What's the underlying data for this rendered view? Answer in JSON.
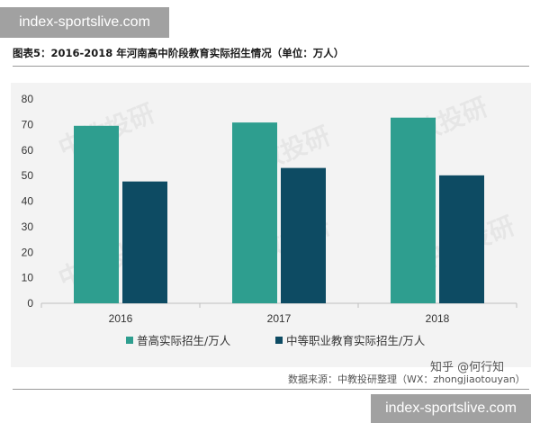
{
  "watermarks": {
    "top": "index-sportslive.com",
    "bottom": "index-sportslive.com"
  },
  "figure": {
    "title": "图表5：2016-2018 年河南高中阶段教育实际招生情况（单位：万人）",
    "source": "数据来源：中教投研整理（WX：zhongjiaotouyan）",
    "credit": "知乎 @何行知"
  },
  "colors": {
    "series1": "#2e9e8f",
    "series2": "#0d4b63",
    "background": "#f3f3f3",
    "grid": "#d0d0d0"
  },
  "chart_data": {
    "type": "bar",
    "categories": [
      "2016",
      "2017",
      "2018"
    ],
    "series": [
      {
        "name": "普高实际招生/万人",
        "values": [
          69.5,
          70.8,
          72.7
        ]
      },
      {
        "name": "中等职业教育实际招生/万人",
        "values": [
          47.7,
          53.0,
          50.1
        ]
      }
    ],
    "ylim": [
      0,
      80
    ],
    "yticks": [
      0,
      10,
      20,
      30,
      40,
      50,
      60,
      70,
      80
    ],
    "grid": false,
    "legend": "bottom",
    "background_text": "中教投研"
  }
}
